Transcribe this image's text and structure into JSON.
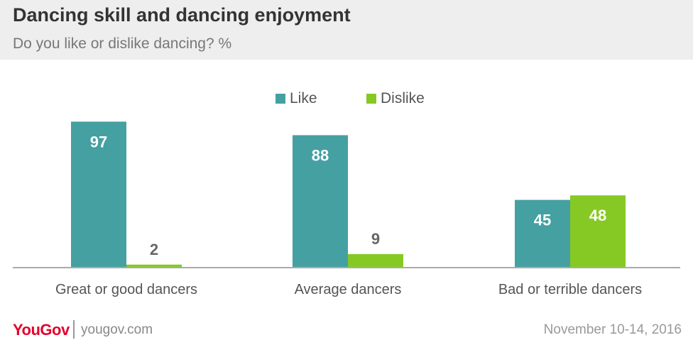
{
  "header": {
    "title": "Dancing skill and dancing enjoyment",
    "subtitle": "Do you like or dislike dancing? %"
  },
  "colors": {
    "like": "#45a0a2",
    "dislike": "#86c924",
    "axis": "#aaaaaa"
  },
  "chart_data": {
    "type": "bar",
    "categories": [
      "Great or good dancers",
      "Average dancers",
      "Bad or terrible dancers"
    ],
    "series": [
      {
        "name": "Like",
        "values": [
          97,
          88,
          45
        ]
      },
      {
        "name": "Dislike",
        "values": [
          2,
          9,
          48
        ]
      }
    ],
    "ylim": [
      0,
      100
    ],
    "grid": false,
    "legend_position": "top-center"
  },
  "footer": {
    "logo_text": "YouGov",
    "site": "yougov.com",
    "date": "November 10-14, 2016"
  }
}
